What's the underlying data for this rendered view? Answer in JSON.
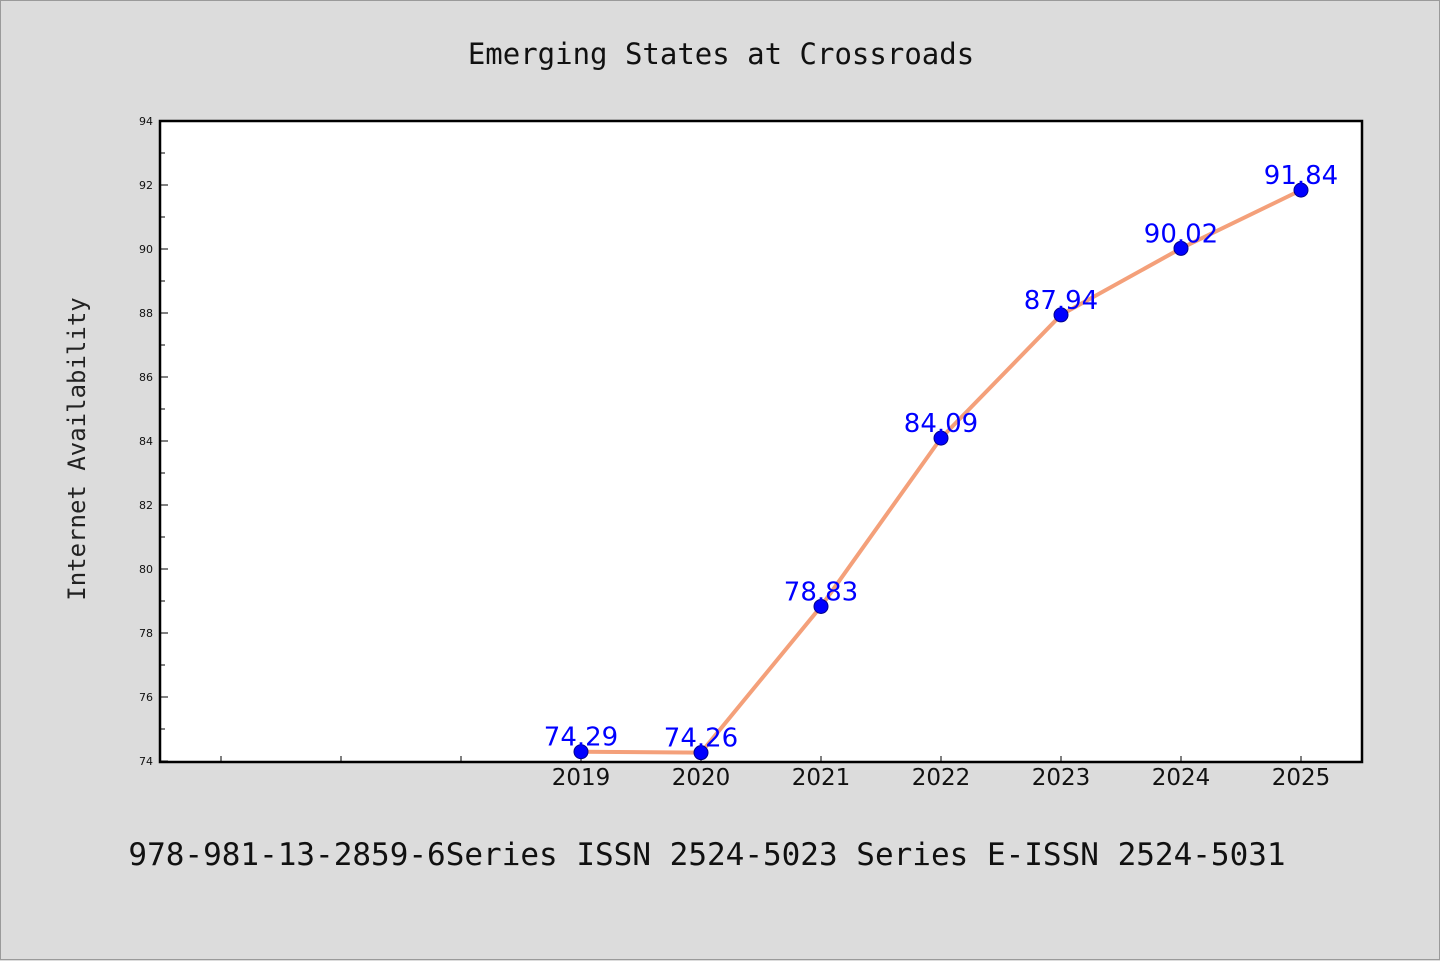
{
  "chart_data": {
    "type": "line",
    "title": "Emerging States at Crossroads",
    "xlabel": "",
    "ylabel": "Internet Availability",
    "x": [
      "2019",
      "2020",
      "2021",
      "2022",
      "2023",
      "2024",
      "2025"
    ],
    "series": [
      {
        "values": [
          74.29,
          74.26,
          78.83,
          84.09,
          87.94,
          90.02,
          91.84
        ],
        "labels": [
          "74.29",
          "74.26",
          "78.83",
          "84.09",
          "87.94",
          "90.02",
          "91.84"
        ]
      }
    ],
    "ylim": [
      74,
      94
    ],
    "yticks": [
      "74",
      "76",
      "78",
      "80",
      "82",
      "84",
      "86",
      "88",
      "90",
      "92",
      "94"
    ],
    "xlim": [
      2015.5,
      2025.5
    ],
    "grid": false,
    "legend": "none",
    "colors": {
      "line": "#f4a07a",
      "marker": "#0000ff",
      "marker_edge": "#00008b",
      "label": "#0000ff",
      "background": "#dcdcdc",
      "plot_background": "#ffffff",
      "axes": "#000000"
    }
  },
  "footer": {
    "text": "978-981-13-2859-6Series ISSN 2524-5023 Series E-ISSN 2524-5031"
  }
}
